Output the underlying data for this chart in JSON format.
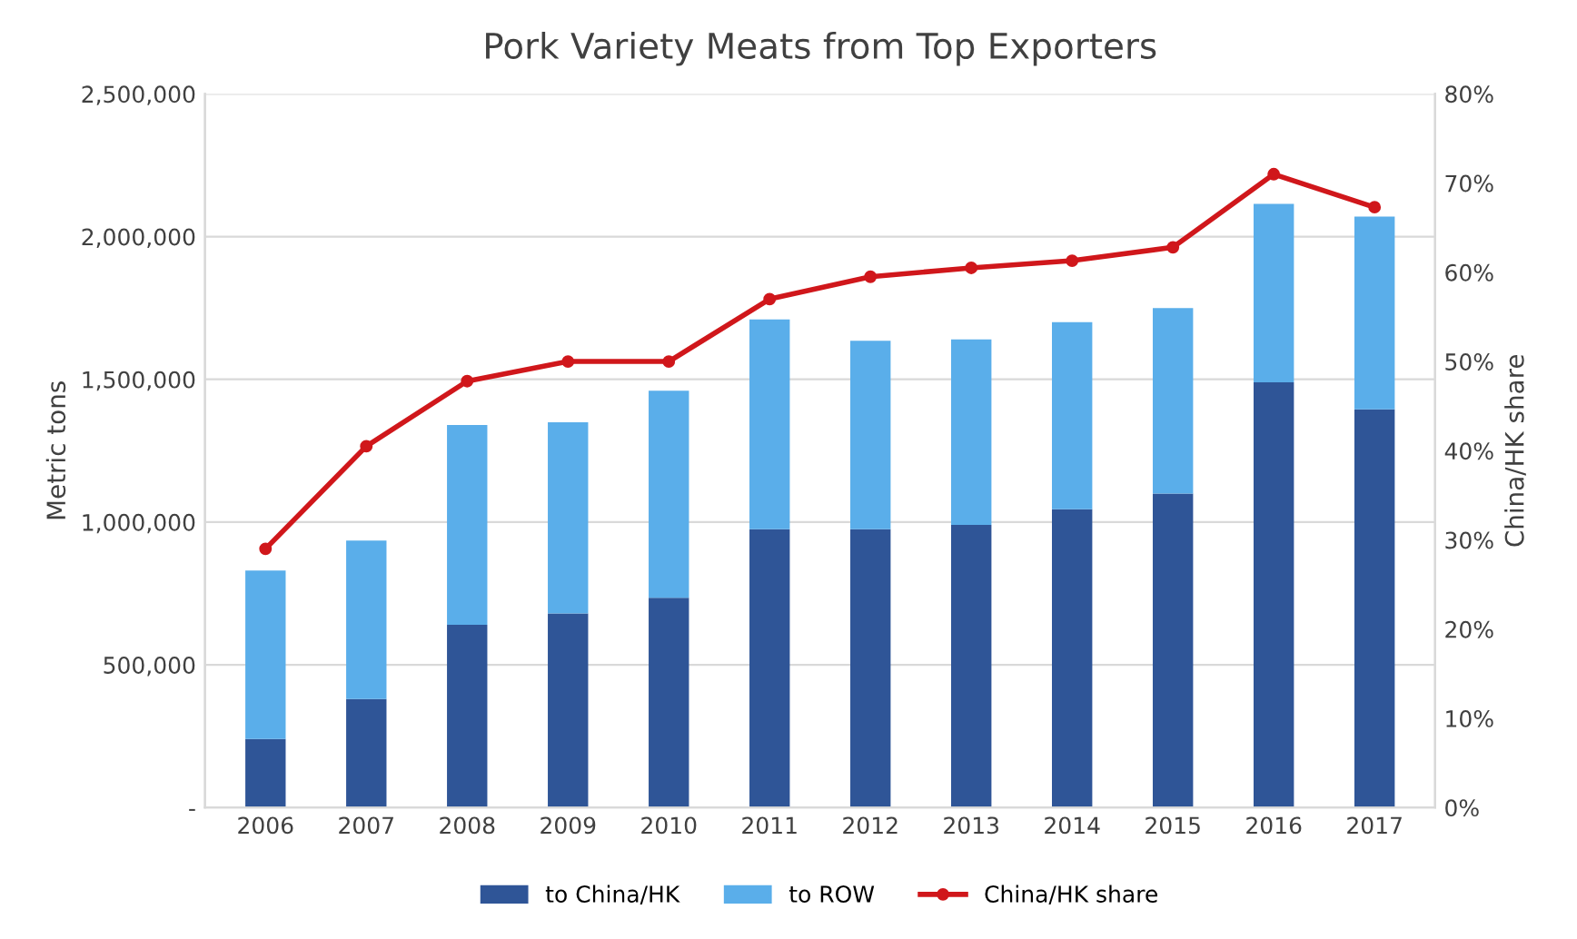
{
  "chart_data": {
    "type": "bar",
    "title": "Pork Variety Meats from Top Exporters",
    "ylabel": "Metric tons",
    "y2label": "China/HK share",
    "categories": [
      "2006",
      "2007",
      "2008",
      "2009",
      "2010",
      "2011",
      "2012",
      "2013",
      "2014",
      "2015",
      "2016",
      "2017"
    ],
    "stacked": true,
    "series": [
      {
        "name": "to China/HK",
        "color": "#2f5597",
        "values": [
          240000,
          380000,
          640000,
          680000,
          735000,
          975000,
          975000,
          990000,
          1045000,
          1100000,
          1490000,
          1395000
        ]
      },
      {
        "name": "to ROW",
        "color": "#5aaeea",
        "values": [
          590000,
          555000,
          700000,
          670000,
          725000,
          735000,
          660000,
          650000,
          655000,
          650000,
          625000,
          675000
        ]
      },
      {
        "name": "China/HK share",
        "type": "line",
        "axis": "y2",
        "color": "#d0171b",
        "marker": "circle",
        "values": [
          29,
          40.5,
          47.8,
          50,
          50,
          57,
          59.5,
          60.5,
          61.3,
          62.8,
          71,
          67.3
        ]
      }
    ],
    "ylim": [
      0,
      2500000
    ],
    "yticks": [
      {
        "value": 0,
        "label": "-"
      },
      {
        "value": 500000,
        "label": "500,000"
      },
      {
        "value": 1000000,
        "label": "1,000,000"
      },
      {
        "value": 1500000,
        "label": "1,500,000"
      },
      {
        "value": 2000000,
        "label": "2,000,000"
      },
      {
        "value": 2500000,
        "label": "2,500,000"
      }
    ],
    "y2lim": [
      0,
      80
    ],
    "y2ticks": [
      {
        "value": 0,
        "label": "0%"
      },
      {
        "value": 10,
        "label": "10%"
      },
      {
        "value": 20,
        "label": "20%"
      },
      {
        "value": 30,
        "label": "30%"
      },
      {
        "value": 40,
        "label": "40%"
      },
      {
        "value": 50,
        "label": "50%"
      },
      {
        "value": 60,
        "label": "60%"
      },
      {
        "value": 70,
        "label": "70%"
      },
      {
        "value": 80,
        "label": "80%"
      }
    ],
    "grid": "y",
    "legend": "bottom"
  }
}
